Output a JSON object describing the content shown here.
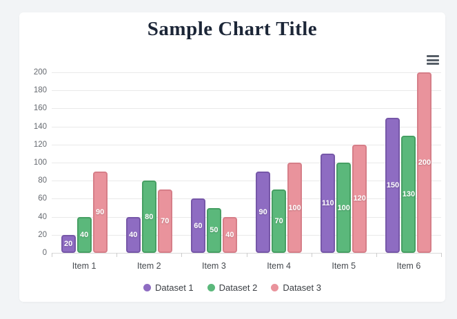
{
  "page": {
    "background_color": "#f2f4f6",
    "card_color": "#ffffff"
  },
  "header": {
    "title": "Sample Chart Title",
    "title_color": "#1c2637"
  },
  "toolbar": {
    "menu_icon": "hamburger-menu-icon"
  },
  "chart_data": {
    "type": "bar",
    "title": "Sample Chart Title",
    "categories": [
      "Item 1",
      "Item 2",
      "Item 3",
      "Item 4",
      "Item 5",
      "Item 6"
    ],
    "series": [
      {
        "name": "Dataset 1",
        "color": "#8e6cc2",
        "border_color": "#7657a8",
        "values": [
          20,
          40,
          60,
          90,
          110,
          150
        ]
      },
      {
        "name": "Dataset 2",
        "color": "#5bb87b",
        "border_color": "#469f63",
        "values": [
          40,
          80,
          50,
          70,
          100,
          130
        ]
      },
      {
        "name": "Dataset 3",
        "color": "#e9939c",
        "border_color": "#d67e88",
        "values": [
          90,
          70,
          40,
          100,
          120,
          200
        ]
      }
    ],
    "xlabel": "",
    "ylabel": "",
    "ylim": [
      0,
      200
    ],
    "yticks": [
      0,
      20,
      40,
      60,
      80,
      100,
      120,
      140,
      160,
      180,
      200
    ],
    "grid": true,
    "gridline_color": "#e9e9e9",
    "legend_position": "bottom",
    "data_labels": "white bold values centered inside bars"
  }
}
